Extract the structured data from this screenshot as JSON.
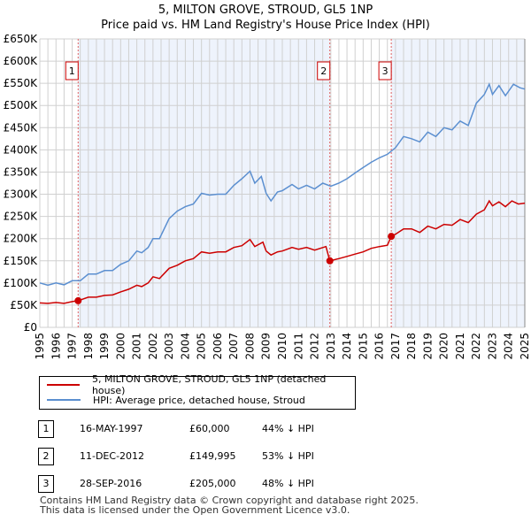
{
  "title_line1": "5, MILTON GROVE, STROUD, GL5 1NP",
  "title_line2": "Price paid vs. HM Land Registry's House Price Index (HPI)",
  "colors": {
    "property": "#cc0000",
    "hpi": "#5b8fd0",
    "shade": "#eef3fc",
    "marker": "#cc0000"
  },
  "chart_data": {
    "type": "line",
    "title": "Price paid vs. HM Land Registry's House Price Index (HPI)",
    "xlim": [
      1995,
      2025
    ],
    "ylim": [
      0,
      650000
    ],
    "x_ticks": [
      "1995",
      "1996",
      "1997",
      "1998",
      "1999",
      "2000",
      "2001",
      "2002",
      "2003",
      "2004",
      "2005",
      "2006",
      "2007",
      "2008",
      "2009",
      "2010",
      "2011",
      "2012",
      "2013",
      "2014",
      "2015",
      "2016",
      "2017",
      "2018",
      "2019",
      "2020",
      "2021",
      "2022",
      "2023",
      "2024",
      "2025"
    ],
    "y_ticks": [
      {
        "v": 0,
        "label": "£0"
      },
      {
        "v": 50000,
        "label": "£50K"
      },
      {
        "v": 100000,
        "label": "£100K"
      },
      {
        "v": 150000,
        "label": "£150K"
      },
      {
        "v": 200000,
        "label": "£200K"
      },
      {
        "v": 250000,
        "label": "£250K"
      },
      {
        "v": 300000,
        "label": "£300K"
      },
      {
        "v": 350000,
        "label": "£350K"
      },
      {
        "v": 400000,
        "label": "£400K"
      },
      {
        "v": 450000,
        "label": "£450K"
      },
      {
        "v": 500000,
        "label": "£500K"
      },
      {
        "v": 550000,
        "label": "£550K"
      },
      {
        "v": 600000,
        "label": "£600K"
      },
      {
        "v": 650000,
        "label": "£650K"
      }
    ],
    "grid": true,
    "series": [
      {
        "name": "5, MILTON GROVE, STROUD, GL5 1NP (detached house)",
        "points": [
          [
            1995,
            55
          ],
          [
            1995.5,
            54
          ],
          [
            1996,
            56
          ],
          [
            1996.5,
            54
          ],
          [
            1997,
            58
          ],
          [
            1997.37,
            60
          ],
          [
            1998,
            68
          ],
          [
            1998.5,
            68
          ],
          [
            1999,
            72
          ],
          [
            1999.5,
            73
          ],
          [
            2000,
            80
          ],
          [
            2000.5,
            86
          ],
          [
            2001,
            95
          ],
          [
            2001.3,
            92
          ],
          [
            2001.7,
            100
          ],
          [
            2002,
            114
          ],
          [
            2002.4,
            110
          ],
          [
            2003,
            133
          ],
          [
            2003.5,
            140
          ],
          [
            2004,
            150
          ],
          [
            2004.5,
            155
          ],
          [
            2005,
            170
          ],
          [
            2005.5,
            167
          ],
          [
            2006,
            170
          ],
          [
            2006.5,
            170
          ],
          [
            2007,
            180
          ],
          [
            2007.5,
            184
          ],
          [
            2008,
            198
          ],
          [
            2008.3,
            182
          ],
          [
            2008.8,
            192
          ],
          [
            2009,
            172
          ],
          [
            2009.3,
            163
          ],
          [
            2009.7,
            170
          ],
          [
            2010,
            172
          ],
          [
            2010.6,
            180
          ],
          [
            2011,
            176
          ],
          [
            2011.5,
            180
          ],
          [
            2012,
            174
          ],
          [
            2012.7,
            182
          ],
          [
            2012.94,
            150
          ],
          [
            2013.5,
            155
          ],
          [
            2014,
            160
          ],
          [
            2014.5,
            165
          ],
          [
            2015,
            170
          ],
          [
            2015.5,
            178
          ],
          [
            2016,
            182
          ],
          [
            2016.5,
            185
          ],
          [
            2016.74,
            205
          ],
          [
            2017,
            210
          ],
          [
            2017.5,
            222
          ],
          [
            2018,
            222
          ],
          [
            2018.5,
            214
          ],
          [
            2019,
            228
          ],
          [
            2019.5,
            222
          ],
          [
            2020,
            232
          ],
          [
            2020.5,
            230
          ],
          [
            2021,
            243
          ],
          [
            2021.5,
            236
          ],
          [
            2022,
            255
          ],
          [
            2022.5,
            265
          ],
          [
            2022.8,
            285
          ],
          [
            2023,
            274
          ],
          [
            2023.4,
            283
          ],
          [
            2023.8,
            272
          ],
          [
            2024.2,
            285
          ],
          [
            2024.6,
            278
          ],
          [
            2025,
            280
          ]
        ]
      },
      {
        "name": "HPI: Average price, detached house, Stroud",
        "points": [
          [
            1995,
            100
          ],
          [
            1995.5,
            95
          ],
          [
            1996,
            100
          ],
          [
            1996.5,
            96
          ],
          [
            1997,
            105
          ],
          [
            1997.5,
            105
          ],
          [
            1998,
            120
          ],
          [
            1998.5,
            120
          ],
          [
            1999,
            128
          ],
          [
            1999.5,
            128
          ],
          [
            2000,
            142
          ],
          [
            2000.5,
            150
          ],
          [
            2001,
            172
          ],
          [
            2001.3,
            168
          ],
          [
            2001.7,
            180
          ],
          [
            2002,
            200
          ],
          [
            2002.4,
            200
          ],
          [
            2003,
            245
          ],
          [
            2003.5,
            262
          ],
          [
            2004,
            272
          ],
          [
            2004.5,
            278
          ],
          [
            2005,
            302
          ],
          [
            2005.5,
            298
          ],
          [
            2006,
            300
          ],
          [
            2006.5,
            300
          ],
          [
            2007,
            320
          ],
          [
            2007.5,
            335
          ],
          [
            2008,
            352
          ],
          [
            2008.3,
            325
          ],
          [
            2008.7,
            340
          ],
          [
            2009,
            302
          ],
          [
            2009.3,
            285
          ],
          [
            2009.7,
            305
          ],
          [
            2010,
            308
          ],
          [
            2010.6,
            322
          ],
          [
            2011,
            312
          ],
          [
            2011.5,
            320
          ],
          [
            2012,
            312
          ],
          [
            2012.5,
            325
          ],
          [
            2013,
            318
          ],
          [
            2013.5,
            325
          ],
          [
            2014,
            335
          ],
          [
            2014.5,
            348
          ],
          [
            2015,
            360
          ],
          [
            2015.5,
            372
          ],
          [
            2016,
            382
          ],
          [
            2016.5,
            390
          ],
          [
            2017,
            405
          ],
          [
            2017.5,
            430
          ],
          [
            2018,
            425
          ],
          [
            2018.5,
            418
          ],
          [
            2019,
            440
          ],
          [
            2019.5,
            430
          ],
          [
            2020,
            450
          ],
          [
            2020.5,
            445
          ],
          [
            2021,
            465
          ],
          [
            2021.5,
            455
          ],
          [
            2022,
            505
          ],
          [
            2022.5,
            525
          ],
          [
            2022.8,
            548
          ],
          [
            2023,
            525
          ],
          [
            2023.4,
            545
          ],
          [
            2023.8,
            522
          ],
          [
            2024.3,
            548
          ],
          [
            2024.7,
            540
          ],
          [
            2025,
            537
          ]
        ]
      }
    ],
    "y_units": "thousands GBP",
    "sales": [
      {
        "n": "1",
        "x": 1997.37,
        "y": 60
      },
      {
        "n": "2",
        "x": 2012.94,
        "y": 150
      },
      {
        "n": "3",
        "x": 2016.74,
        "y": 205
      }
    ]
  },
  "legend": {
    "property": "5, MILTON GROVE, STROUD, GL5 1NP (detached house)",
    "hpi": "HPI: Average price, detached house, Stroud"
  },
  "table": [
    {
      "n": "1",
      "date": "16-MAY-1997",
      "price": "£60,000",
      "hpi": "44% ↓ HPI"
    },
    {
      "n": "2",
      "date": "11-DEC-2012",
      "price": "£149,995",
      "hpi": "53% ↓ HPI"
    },
    {
      "n": "3",
      "date": "28-SEP-2016",
      "price": "£205,000",
      "hpi": "48% ↓ HPI"
    }
  ],
  "footer": {
    "line1": "Contains HM Land Registry data © Crown copyright and database right 2025.",
    "line2": "This data is licensed under the Open Government Licence v3.0."
  }
}
